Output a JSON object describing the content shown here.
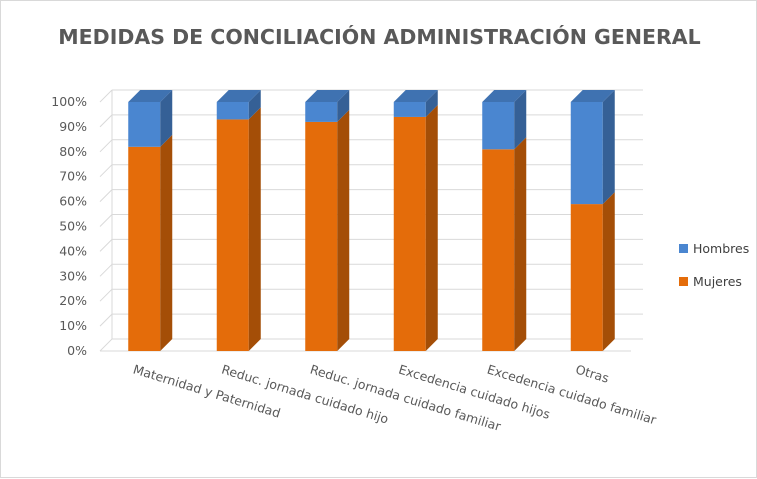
{
  "chart_data": {
    "type": "bar",
    "stacked": true,
    "percent_stacked": true,
    "three_d": true,
    "title": "MEDIDAS DE CONCILIACIÓN ADMINISTRACIÓN GENERAL",
    "categories": [
      "Maternidad y Paternidad",
      "Reduc. jornada cuidado hijo",
      "Reduc. jornada cuidado familiar",
      "Excedencia cuidado hijos",
      "Excedencia cuidado familiar",
      "Otras"
    ],
    "series": [
      {
        "name": "Mujeres",
        "color": "#E46C0A",
        "values": [
          82,
          93,
          92,
          94,
          81,
          59
        ]
      },
      {
        "name": "Hombres",
        "color": "#4A86D0",
        "values": [
          18,
          7,
          8,
          6,
          19,
          41
        ]
      }
    ],
    "y_ticks": [
      "0%",
      "10%",
      "20%",
      "30%",
      "40%",
      "50%",
      "60%",
      "70%",
      "80%",
      "90%",
      "100%"
    ],
    "ylim": [
      0,
      100
    ],
    "grid": true,
    "legend_position": "right"
  }
}
